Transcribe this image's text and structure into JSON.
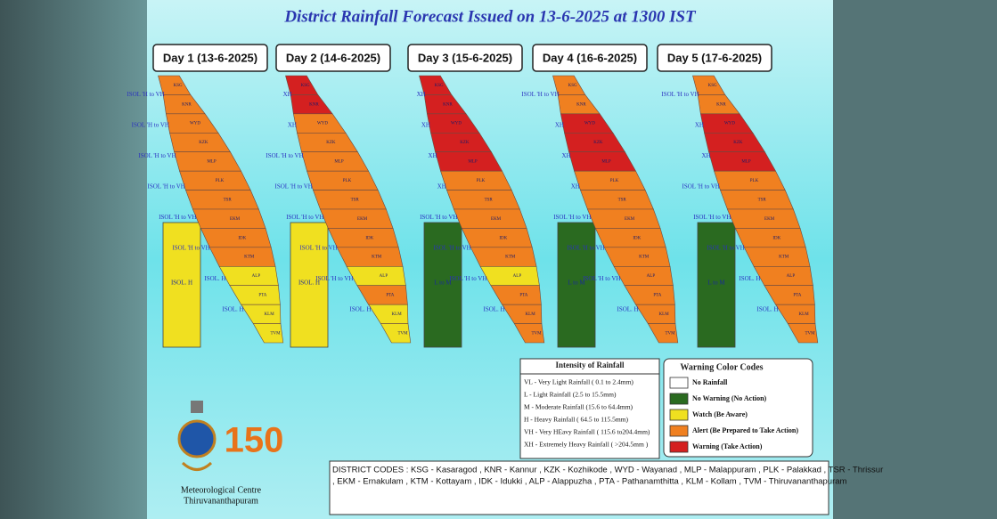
{
  "header": {
    "title": "District Rainfall Forecast Issued on  13-6-2025 at 1300 IST"
  },
  "district_names": [
    "KSG",
    "KNR",
    "WYD",
    "KZK",
    "MLP",
    "PLK",
    "TSR",
    "EKM",
    "IDK",
    "KTM",
    "ALP",
    "PTA",
    "KLM",
    "TVM"
  ],
  "days": [
    {
      "label": "Day 1 (13-6-2025)",
      "districts": [
        "#f08020",
        "#f08020",
        "#f08020",
        "#f08020",
        "#f08020",
        "#f08020",
        "#f08020",
        "#f08020",
        "#f08020",
        "#f08020",
        "#f0e020",
        "#f0e020",
        "#f0e020",
        "#f0e020"
      ],
      "island_color": "#f0e020",
      "island_label": "ISOL. H",
      "labels": [
        "ISOL 'H to VH",
        "ISOL 'H to VH",
        "ISOL 'H to VH",
        "ISOL 'H to VH",
        "ISOL 'H to VH",
        "ISOL 'H to VH",
        "ISOL. H",
        "ISOL. H"
      ]
    },
    {
      "label": "Day 2 (14-6-2025)",
      "districts": [
        "#d42020",
        "#d42020",
        "#f08020",
        "#f08020",
        "#f08020",
        "#f08020",
        "#f08020",
        "#f08020",
        "#f08020",
        "#f08020",
        "#f0e020",
        "#f08020",
        "#f0e020",
        "#f0e020"
      ],
      "island_color": "#f0e020",
      "island_label": "ISOL. H",
      "labels": [
        "XH",
        "XH",
        "ISOL 'H to VH",
        "ISOL 'H to VH",
        "ISOL 'H to VH",
        "ISOL 'H to VH",
        "ISOL 'H to VH",
        "ISOL. H"
      ]
    },
    {
      "label": "Day 3 (15-6-2025)",
      "districts": [
        "#d42020",
        "#d42020",
        "#d42020",
        "#d42020",
        "#d42020",
        "#f08020",
        "#f08020",
        "#f08020",
        "#f08020",
        "#f08020",
        "#f0e020",
        "#f08020",
        "#f08020",
        "#f08020"
      ],
      "island_color": "#2a6a20",
      "island_label": "L to M",
      "labels": [
        "XH",
        "XH",
        "XH",
        "XH",
        "ISOL 'H to VH",
        "ISOL 'H to VH",
        "ISOL 'H to VH",
        "ISOL. H"
      ]
    },
    {
      "label": "Day 4 (16-6-2025)",
      "districts": [
        "#f08020",
        "#f08020",
        "#d42020",
        "#d42020",
        "#d42020",
        "#f08020",
        "#f08020",
        "#f08020",
        "#f08020",
        "#f08020",
        "#f08020",
        "#f08020",
        "#f08020",
        "#f08020"
      ],
      "island_color": "#2a6a20",
      "island_label": "L to M",
      "labels": [
        "ISOL 'H to VH",
        "XH",
        "XH",
        "XH",
        "ISOL 'H to VH",
        "ISOL 'H to VH",
        "ISOL 'H to VH",
        "ISOL. H"
      ]
    },
    {
      "label": "Day 5 (17-6-2025)",
      "districts": [
        "#f08020",
        "#f08020",
        "#d42020",
        "#d42020",
        "#d42020",
        "#f08020",
        "#f08020",
        "#f08020",
        "#f08020",
        "#f08020",
        "#f08020",
        "#f08020",
        "#f08020",
        "#f08020"
      ],
      "island_color": "#2a6a20",
      "island_label": "L to M",
      "labels": [
        "ISOL 'H to VH",
        "XH",
        "XH",
        "ISOL 'H to VH",
        "ISOL 'H to VH",
        "ISOL 'H to VH",
        "ISOL. H",
        "ISOL. H"
      ]
    }
  ],
  "intensity": {
    "title": "Intensity of Rainfall",
    "items": [
      "VL - Very Light Rainfall ( 0.1 to 2.4mm)",
      "L  - Light Rainfall (2.5 to 15.5mm)",
      "M - Moderate Rainfall (15.6 to 64.4mm)",
      "H - Heavy Rainfall ( 64.5 to 115.5mm)",
      "VH - Very HEavy Rainfall ( 115.6 to204.4mm)",
      "XH - Extremely Heavy Rainfall ( >204.5mm )"
    ]
  },
  "warning": {
    "title": "Warning Color Codes",
    "items": [
      {
        "color": "#ffffff",
        "label": "No Rainfall"
      },
      {
        "color": "#2a6a20",
        "label": "No Warning (No Action)"
      },
      {
        "color": "#f0e020",
        "label": "Watch (Be Aware)"
      },
      {
        "color": "#f08020",
        "label": "Alert (Be Prepared to Take Action)"
      },
      {
        "color": "#d42020",
        "label": "Warning (Take Action)"
      }
    ]
  },
  "district_codes": [
    "DISTRICT CODES : KSG - Kasaragod , KNR - Kannur , KZK - Kozhikode , WYD - Wayanad , MLP - Malappuram , PLK - Palakkad , TSR - Thrissur",
    ", EKM - Ernakulam , KTM - Kottayam , IDK - Idukki , ALP - Alappuzha ,      PTA - Pathanamthitta , KLM - Kollam , TVM - Thiruvananthapuram"
  ],
  "footer": {
    "logo_number": "150",
    "org": "Meteorological Centre",
    "city": "Thiruvananthapuram"
  }
}
